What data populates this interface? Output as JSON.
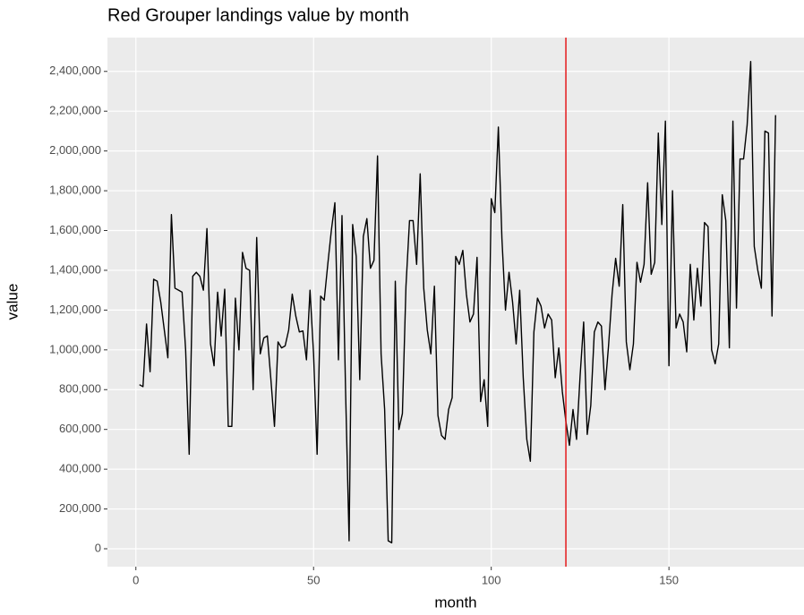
{
  "chart_data": {
    "type": "line",
    "title": "Red Grouper landings value by month",
    "x_label": "month",
    "y_label": "value",
    "x": [
      1,
      2,
      3,
      4,
      5,
      6,
      7,
      8,
      9,
      10,
      11,
      12,
      13,
      14,
      15,
      16,
      17,
      18,
      19,
      20,
      21,
      22,
      23,
      24,
      25,
      26,
      27,
      28,
      29,
      30,
      31,
      32,
      33,
      34,
      35,
      36,
      37,
      38,
      39,
      40,
      41,
      42,
      43,
      44,
      45,
      46,
      47,
      48,
      49,
      50,
      51,
      52,
      53,
      54,
      55,
      56,
      57,
      58,
      59,
      60,
      61,
      62,
      63,
      64,
      65,
      66,
      67,
      68,
      69,
      70,
      71,
      72,
      73,
      74,
      75,
      76,
      77,
      78,
      79,
      80,
      81,
      82,
      83,
      84,
      85,
      86,
      87,
      88,
      89,
      90,
      91,
      92,
      93,
      94,
      95,
      96,
      97,
      98,
      99,
      100,
      101,
      102,
      103,
      104,
      105,
      106,
      107,
      108,
      109,
      110,
      111,
      112,
      113,
      114,
      115,
      116,
      117,
      118,
      119,
      120,
      121,
      122,
      123,
      124,
      125,
      126,
      127,
      128,
      129,
      130,
      131,
      132,
      133,
      134,
      135,
      136,
      137,
      138,
      139,
      140,
      141,
      142,
      143,
      144,
      145,
      146,
      147,
      148,
      149,
      150,
      151,
      152,
      153,
      154,
      155,
      156,
      157,
      158,
      159,
      160,
      161,
      162,
      163,
      164,
      165,
      166,
      167,
      168,
      169,
      170,
      171,
      172,
      173,
      174,
      175,
      176,
      177,
      178,
      179,
      180
    ],
    "values": [
      825000,
      815000,
      1130000,
      890000,
      1355000,
      1345000,
      1240000,
      1100000,
      960000,
      1680000,
      1310000,
      1300000,
      1290000,
      1000000,
      475000,
      1370000,
      1390000,
      1370000,
      1300000,
      1610000,
      1030000,
      920000,
      1290000,
      1070000,
      1305000,
      615000,
      615000,
      1260000,
      1000000,
      1490000,
      1410000,
      1400000,
      800000,
      1565000,
      980000,
      1060000,
      1070000,
      850000,
      615000,
      1040000,
      1010000,
      1020000,
      1100000,
      1280000,
      1170000,
      1090000,
      1095000,
      950000,
      1300000,
      980000,
      475000,
      1270000,
      1250000,
      1430000,
      1600000,
      1740000,
      950000,
      1675000,
      800000,
      40000,
      1630000,
      1470000,
      850000,
      1570000,
      1660000,
      1410000,
      1450000,
      1975000,
      980000,
      700000,
      40000,
      30000,
      1345000,
      600000,
      680000,
      1320000,
      1650000,
      1650000,
      1430000,
      1885000,
      1310000,
      1100000,
      980000,
      1320000,
      670000,
      570000,
      550000,
      700000,
      760000,
      1470000,
      1430000,
      1500000,
      1280000,
      1140000,
      1180000,
      1465000,
      740000,
      850000,
      615000,
      1760000,
      1690000,
      2120000,
      1560000,
      1200000,
      1390000,
      1240000,
      1030000,
      1300000,
      860000,
      550000,
      440000,
      1090000,
      1260000,
      1220000,
      1110000,
      1180000,
      1150000,
      860000,
      1010000,
      790000,
      640000,
      520000,
      700000,
      550000,
      870000,
      1140000,
      575000,
      720000,
      1090000,
      1140000,
      1120000,
      800000,
      1020000,
      1280000,
      1460000,
      1320000,
      1730000,
      1040000,
      900000,
      1030000,
      1440000,
      1340000,
      1430000,
      1840000,
      1380000,
      1440000,
      2090000,
      1630000,
      2150000,
      920000,
      1800000,
      1110000,
      1180000,
      1140000,
      990000,
      1430000,
      1150000,
      1410000,
      1220000,
      1640000,
      1620000,
      1000000,
      930000,
      1030000,
      1780000,
      1650000,
      1010000,
      2150000,
      1210000,
      1960000,
      1960000,
      2130000,
      2450000,
      1520000,
      1400000,
      1310000,
      2100000,
      2090000,
      1170000,
      2180000
    ],
    "color": "#000000",
    "xlim": [
      -8,
      188
    ],
    "xticks": [
      0,
      50,
      100,
      150
    ],
    "ylim": [
      -90000,
      2570000
    ],
    "yticks": [
      0,
      {
        "value": 200000,
        "label": "200,000"
      },
      {
        "value": 400000,
        "label": "400,000"
      },
      {
        "value": 600000,
        "label": "600,000"
      },
      {
        "value": 800000,
        "label": "800,000"
      },
      {
        "value": 1000000,
        "label": "1,000,000"
      },
      {
        "value": 1200000,
        "label": "1,200,000"
      },
      {
        "value": 1400000,
        "label": "1,400,000"
      },
      {
        "value": 1600000,
        "label": "1,600,000"
      },
      {
        "value": 1800000,
        "label": "1,800,000"
      },
      {
        "value": 2000000,
        "label": "2,000,000"
      },
      {
        "value": 2200000,
        "label": "2,200,000"
      },
      {
        "value": 2400000,
        "label": "2,400,000"
      }
    ],
    "grid": true,
    "vline": {
      "x": 121,
      "color": "#e41a1c"
    }
  }
}
